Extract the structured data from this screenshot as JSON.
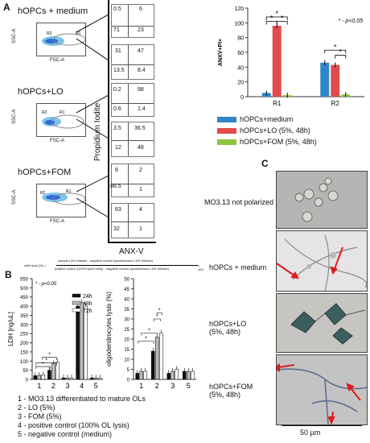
{
  "panels": {
    "a": "A",
    "b": "B",
    "c": "C"
  },
  "flow": {
    "groups": [
      {
        "label": "hOPCs + medium",
        "q1": "0.5",
        "q2": "6",
        "q3": "71",
        "q4": "23",
        "q2b": "31",
        "q2a": "47",
        "q3b": "13.5",
        "q4b": "8.4"
      },
      {
        "label": "hOPCs+LO",
        "q1": "0.2",
        "q2": "98",
        "q3": "0.6",
        "q4": "1.4",
        "q2b": "3.5",
        "q2a": "36.5",
        "q3b": "12",
        "q4b": "48"
      },
      {
        "label": "hOPCs+FOM",
        "q1": "8",
        "q2": "2",
        "q3": "88.5",
        "q4": "1",
        "q2b": "63",
        "q2a": "4",
        "q3b": "32",
        "q4b": "1"
      }
    ],
    "ssc": "SSC-A",
    "fsc": "FSC-A",
    "gate_r1": "R1",
    "gate_r2": "R2",
    "y_axis": "Propidium Iodite",
    "x_axis": "ANX-V"
  },
  "chart_data": [
    {
      "type": "bar",
      "ylabel": "ANXV+PI+",
      "ylim": [
        0,
        120
      ],
      "yticks": [
        0,
        20,
        40,
        60,
        80,
        100,
        120
      ],
      "categories": [
        "R1",
        "R2"
      ],
      "series": [
        {
          "name": "hOPCs+medium",
          "values": [
            5,
            46
          ],
          "color": "#2e86c9"
        },
        {
          "name": "hOPCs+LO (5%, 48h)",
          "values": [
            96,
            43
          ],
          "color": "#e24b4b"
        },
        {
          "name": "hOPCs+FOM (5%, 48h)",
          "values": [
            2,
            3
          ],
          "color": "#8cc63f"
        }
      ],
      "annotation": "* - p<0.05",
      "star": "*"
    },
    {
      "type": "bar",
      "ylabel": "LDH [ng/uL]",
      "ylim": [
        0,
        550
      ],
      "yticks": [
        0,
        50,
        100,
        150,
        200,
        250,
        300,
        350,
        400,
        450,
        500,
        550
      ],
      "categories": [
        "1",
        "2",
        "3",
        "4",
        "5"
      ],
      "series": [
        {
          "name": "24h",
          "values": [
            20,
            50,
            8,
            400,
            8
          ],
          "color": "#111111"
        },
        {
          "name": "48h",
          "values": [
            22,
            85,
            8,
            420,
            7
          ],
          "color": "#bbbbbb"
        },
        {
          "name": "72h",
          "values": [
            25,
            95,
            8,
            400,
            7
          ],
          "color": "#ffffff"
        }
      ],
      "annotation": "* - p<0.05",
      "star": "*"
    },
    {
      "type": "bar",
      "ylabel": "oligodendrocytes lysis (%)",
      "ylim": [
        0,
        50
      ],
      "yticks": [
        0,
        5,
        10,
        15,
        20,
        25,
        30,
        35,
        40,
        45,
        50
      ],
      "categories": [
        "1",
        "2",
        "3",
        "5"
      ],
      "series": [
        {
          "name": "24h",
          "values": [
            3,
            14,
            3,
            4
          ],
          "color": "#111111"
        },
        {
          "name": "48h",
          "values": [
            4,
            21,
            4,
            4
          ],
          "color": "#bbbbbb"
        },
        {
          "name": "72h",
          "values": [
            4,
            23,
            5,
            4
          ],
          "color": "#ffffff"
        }
      ],
      "star": "*"
    }
  ],
  "formula": {
    "lhs": "cells lysis [%] =",
    "num1": "sample LDH release - negative control (spontaneous LDH release)",
    "den1": "positive control (100% lysed cells) - negative control (spontaneous LDH release)",
    "mult": "x 100"
  },
  "key": [
    "1 - MO3.13 differentiated to mature  OLs",
    "2 - LO (5%)",
    "3 - FOM (5%)",
    "4 - positive control (100% OL lysis)",
    "5 - negative control (medium)"
  ],
  "micro": {
    "rows": [
      "MO3.13 not polarized",
      "hOPCs + medium",
      "hOPCs+LO\n(5%, 48h)",
      "hOPCs+FOM\n(5%, 48h)"
    ],
    "scale": "50 µm"
  }
}
